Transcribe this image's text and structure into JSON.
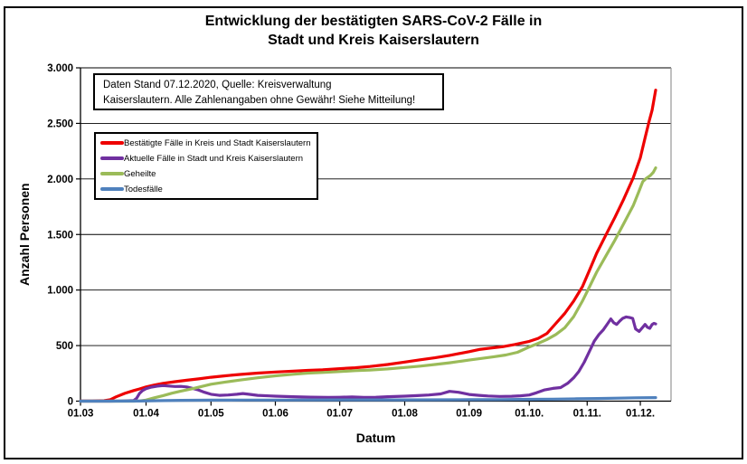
{
  "title": {
    "line1": "Entwicklung der bestätigten SARS-CoV-2 Fälle in",
    "line2": "Stadt und Kreis Kaiserslautern"
  },
  "info_box": {
    "line1": "Daten Stand 07.12.2020, Quelle: Kreisverwaltung",
    "line2": "Kaiserslautern. Alle Zahlenangaben ohne Gewähr! Siehe Mitteilung!"
  },
  "colors": {
    "confirmed": "#ee0000",
    "active": "#7030a0",
    "recovered": "#9bbb59",
    "deaths": "#4f81bd",
    "gridline": "#000000",
    "plot_border": "#969696"
  },
  "chart_data": {
    "type": "line",
    "title": "Entwicklung der bestätigten SARS-CoV-2 Fälle in Stadt und Kreis Kaiserslautern",
    "xlabel": "Datum",
    "ylabel": "Anzahl Personen",
    "ylim": [
      0,
      3000
    ],
    "grid": true,
    "legend_position": "inside-top-left",
    "x_unit": "fraction of x-axis width, dates 01.03.2020 through 07.12.2020",
    "y_ticks": [
      {
        "label": "3.000",
        "value": 3000
      },
      {
        "label": "2.500",
        "value": 2500
      },
      {
        "label": "2.000",
        "value": 2000
      },
      {
        "label": "1.500",
        "value": 1500
      },
      {
        "label": "1.000",
        "value": 1000
      },
      {
        "label": "500",
        "value": 500
      },
      {
        "label": "0",
        "value": 0
      }
    ],
    "x_ticks": [
      {
        "label": "01.03",
        "pos": 0.0
      },
      {
        "label": "01.04",
        "pos": 0.111
      },
      {
        "label": "01.05",
        "pos": 0.221
      },
      {
        "label": "01.06",
        "pos": 0.33
      },
      {
        "label": "01.07",
        "pos": 0.439
      },
      {
        "label": "01.08",
        "pos": 0.549
      },
      {
        "label": "01.09",
        "pos": 0.658
      },
      {
        "label": "01.10.",
        "pos": 0.76
      },
      {
        "label": "01.11.",
        "pos": 0.858
      },
      {
        "label": "01.12.",
        "pos": 0.948
      }
    ],
    "series": [
      {
        "name": "Bestätigte Fälle in Kreis und Stadt Kaiserslautern",
        "color_key": "confirmed",
        "points": [
          [
            0,
            2
          ],
          [
            0.02,
            2
          ],
          [
            0.04,
            4
          ],
          [
            0.05,
            12
          ],
          [
            0.06,
            38
          ],
          [
            0.075,
            70
          ],
          [
            0.09,
            95
          ],
          [
            0.1,
            110
          ],
          [
            0.111,
            128
          ],
          [
            0.125,
            145
          ],
          [
            0.14,
            160
          ],
          [
            0.16,
            175
          ],
          [
            0.18,
            188
          ],
          [
            0.2,
            200
          ],
          [
            0.221,
            215
          ],
          [
            0.245,
            228
          ],
          [
            0.27,
            240
          ],
          [
            0.3,
            252
          ],
          [
            0.33,
            262
          ],
          [
            0.36,
            270
          ],
          [
            0.385,
            277
          ],
          [
            0.41,
            282
          ],
          [
            0.439,
            292
          ],
          [
            0.465,
            300
          ],
          [
            0.49,
            312
          ],
          [
            0.52,
            330
          ],
          [
            0.549,
            352
          ],
          [
            0.575,
            372
          ],
          [
            0.6,
            390
          ],
          [
            0.625,
            412
          ],
          [
            0.658,
            445
          ],
          [
            0.675,
            465
          ],
          [
            0.695,
            478
          ],
          [
            0.715,
            490
          ],
          [
            0.735,
            510
          ],
          [
            0.76,
            538
          ],
          [
            0.775,
            565
          ],
          [
            0.79,
            610
          ],
          [
            0.805,
            700
          ],
          [
            0.82,
            790
          ],
          [
            0.835,
            900
          ],
          [
            0.85,
            1030
          ],
          [
            0.862,
            1180
          ],
          [
            0.874,
            1330
          ],
          [
            0.89,
            1500
          ],
          [
            0.905,
            1655
          ],
          [
            0.92,
            1820
          ],
          [
            0.936,
            2010
          ],
          [
            0.948,
            2190
          ],
          [
            0.956,
            2370
          ],
          [
            0.963,
            2520
          ],
          [
            0.968,
            2620
          ],
          [
            0.974,
            2800
          ]
        ]
      },
      {
        "name": "Aktuelle Fälle in Stadt und Kreis Kaiserslautern",
        "color_key": "active",
        "points": [
          [
            0,
            0
          ],
          [
            0.05,
            0
          ],
          [
            0.07,
            2
          ],
          [
            0.09,
            5
          ],
          [
            0.095,
            25
          ],
          [
            0.1,
            70
          ],
          [
            0.105,
            95
          ],
          [
            0.111,
            112
          ],
          [
            0.12,
            126
          ],
          [
            0.13,
            135
          ],
          [
            0.14,
            140
          ],
          [
            0.15,
            136
          ],
          [
            0.16,
            132
          ],
          [
            0.17,
            133
          ],
          [
            0.18,
            128
          ],
          [
            0.19,
            115
          ],
          [
            0.2,
            100
          ],
          [
            0.21,
            80
          ],
          [
            0.221,
            62
          ],
          [
            0.235,
            52
          ],
          [
            0.25,
            55
          ],
          [
            0.265,
            62
          ],
          [
            0.275,
            68
          ],
          [
            0.285,
            62
          ],
          [
            0.3,
            52
          ],
          [
            0.32,
            47
          ],
          [
            0.33,
            45
          ],
          [
            0.36,
            40
          ],
          [
            0.39,
            36
          ],
          [
            0.42,
            34
          ],
          [
            0.439,
            35
          ],
          [
            0.46,
            38
          ],
          [
            0.48,
            34
          ],
          [
            0.5,
            35
          ],
          [
            0.52,
            40
          ],
          [
            0.549,
            45
          ],
          [
            0.57,
            50
          ],
          [
            0.59,
            55
          ],
          [
            0.61,
            65
          ],
          [
            0.625,
            88
          ],
          [
            0.64,
            80
          ],
          [
            0.658,
            60
          ],
          [
            0.675,
            52
          ],
          [
            0.69,
            46
          ],
          [
            0.71,
            42
          ],
          [
            0.73,
            44
          ],
          [
            0.745,
            48
          ],
          [
            0.76,
            55
          ],
          [
            0.772,
            75
          ],
          [
            0.785,
            100
          ],
          [
            0.8,
            115
          ],
          [
            0.813,
            122
          ],
          [
            0.825,
            160
          ],
          [
            0.835,
            210
          ],
          [
            0.844,
            268
          ],
          [
            0.853,
            350
          ],
          [
            0.862,
            450
          ],
          [
            0.87,
            540
          ],
          [
            0.878,
            600
          ],
          [
            0.885,
            640
          ],
          [
            0.893,
            700
          ],
          [
            0.898,
            740
          ],
          [
            0.903,
            705
          ],
          [
            0.908,
            690
          ],
          [
            0.913,
            720
          ],
          [
            0.918,
            745
          ],
          [
            0.924,
            758
          ],
          [
            0.93,
            752
          ],
          [
            0.935,
            745
          ],
          [
            0.94,
            650
          ],
          [
            0.946,
            628
          ],
          [
            0.952,
            665
          ],
          [
            0.956,
            690
          ],
          [
            0.96,
            665
          ],
          [
            0.964,
            655
          ],
          [
            0.968,
            690
          ],
          [
            0.971,
            700
          ],
          [
            0.974,
            695
          ]
        ]
      },
      {
        "name": "Geheilte",
        "color_key": "recovered",
        "points": [
          [
            0,
            0
          ],
          [
            0.07,
            0
          ],
          [
            0.09,
            0
          ],
          [
            0.1,
            2
          ],
          [
            0.111,
            10
          ],
          [
            0.125,
            30
          ],
          [
            0.14,
            50
          ],
          [
            0.155,
            72
          ],
          [
            0.17,
            90
          ],
          [
            0.19,
            112
          ],
          [
            0.205,
            132
          ],
          [
            0.221,
            152
          ],
          [
            0.245,
            172
          ],
          [
            0.27,
            190
          ],
          [
            0.3,
            210
          ],
          [
            0.33,
            228
          ],
          [
            0.36,
            242
          ],
          [
            0.385,
            252
          ],
          [
            0.41,
            258
          ],
          [
            0.439,
            266
          ],
          [
            0.465,
            274
          ],
          [
            0.49,
            280
          ],
          [
            0.52,
            290
          ],
          [
            0.549,
            303
          ],
          [
            0.575,
            315
          ],
          [
            0.6,
            330
          ],
          [
            0.625,
            345
          ],
          [
            0.658,
            370
          ],
          [
            0.68,
            385
          ],
          [
            0.7,
            400
          ],
          [
            0.72,
            415
          ],
          [
            0.74,
            440
          ],
          [
            0.76,
            488
          ],
          [
            0.775,
            520
          ],
          [
            0.79,
            555
          ],
          [
            0.805,
            600
          ],
          [
            0.82,
            660
          ],
          [
            0.835,
            760
          ],
          [
            0.85,
            900
          ],
          [
            0.862,
            1030
          ],
          [
            0.874,
            1160
          ],
          [
            0.89,
            1310
          ],
          [
            0.905,
            1450
          ],
          [
            0.92,
            1600
          ],
          [
            0.936,
            1760
          ],
          [
            0.945,
            1880
          ],
          [
            0.952,
            1975
          ],
          [
            0.958,
            2005
          ],
          [
            0.965,
            2030
          ],
          [
            0.97,
            2060
          ],
          [
            0.974,
            2100
          ]
        ]
      },
      {
        "name": "Todesfälle",
        "color_key": "deaths",
        "points": [
          [
            0,
            0
          ],
          [
            0.05,
            0
          ],
          [
            0.1,
            1
          ],
          [
            0.13,
            4
          ],
          [
            0.17,
            7
          ],
          [
            0.221,
            9
          ],
          [
            0.28,
            10
          ],
          [
            0.33,
            10
          ],
          [
            0.439,
            11
          ],
          [
            0.549,
            11
          ],
          [
            0.62,
            12
          ],
          [
            0.658,
            13
          ],
          [
            0.71,
            14
          ],
          [
            0.76,
            16
          ],
          [
            0.8,
            18
          ],
          [
            0.84,
            21
          ],
          [
            0.875,
            24
          ],
          [
            0.91,
            27
          ],
          [
            0.94,
            30
          ],
          [
            0.974,
            32
          ]
        ]
      }
    ]
  }
}
